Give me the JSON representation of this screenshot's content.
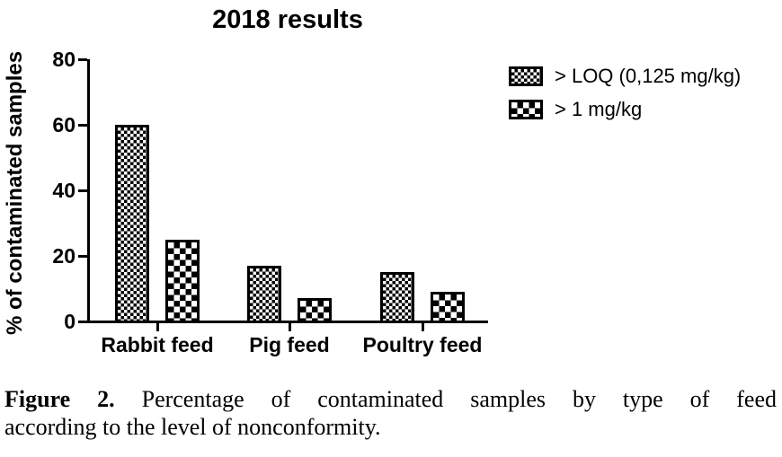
{
  "chart_data": {
    "type": "bar",
    "title": "2018 results",
    "xlabel": "",
    "ylabel": "% of contaminated samples",
    "categories": [
      "Rabbit feed",
      "Pig feed",
      "Poultry feed"
    ],
    "series": [
      {
        "name": "> LOQ (0,125 mg/kg)",
        "fill": "fine-checkerboard",
        "values": [
          60,
          17,
          15
        ]
      },
      {
        "name": "> 1 mg/kg",
        "fill": "coarse-checkerboard",
        "values": [
          25,
          7,
          9
        ]
      }
    ],
    "ylim": [
      0,
      80
    ],
    "yticks": [
      0,
      20,
      40,
      60,
      80
    ],
    "grid": false,
    "legend_position": "top-right",
    "bar_outline_color": "#000000",
    "background_color": "#ffffff",
    "text_color": "#000000"
  },
  "caption": {
    "figure_label": "Figure 2.",
    "line1": "Percentage of contaminated samples by type of feed",
    "line2": "according to the level of nonconformity.",
    "full_text": "Figure 2. Percentage of contaminated samples by type of feed according to the level of nonconformity."
  }
}
